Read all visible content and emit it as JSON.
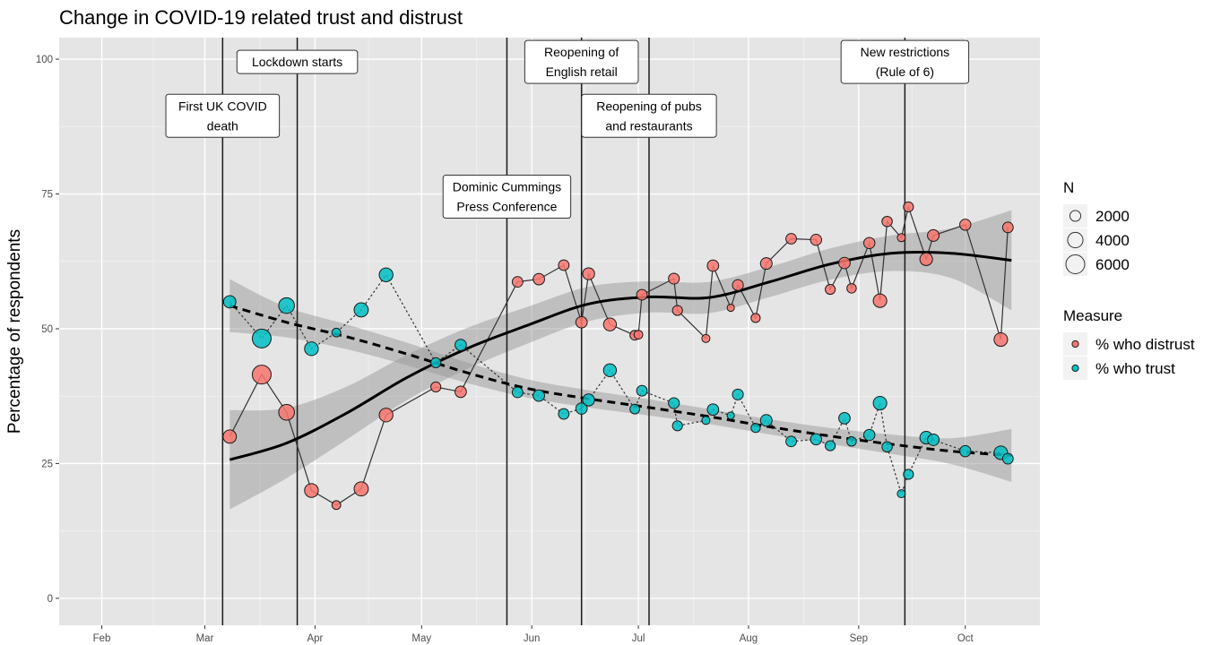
{
  "chart_data": {
    "type": "line",
    "title": "Change in COVID-19 related trust and distrust",
    "xlabel": "",
    "ylabel": "Percentage of respondents",
    "x_type": "date",
    "xlim": [
      "2020-01-20",
      "2020-10-22"
    ],
    "ylim": [
      -5,
      104
    ],
    "x_ticks": [
      {
        "date": "2020-02-01",
        "label": "Feb"
      },
      {
        "date": "2020-03-01",
        "label": "Mar"
      },
      {
        "date": "2020-04-01",
        "label": "Apr"
      },
      {
        "date": "2020-05-01",
        "label": "May"
      },
      {
        "date": "2020-06-01",
        "label": "Jun"
      },
      {
        "date": "2020-07-01",
        "label": "Jul"
      },
      {
        "date": "2020-08-01",
        "label": "Aug"
      },
      {
        "date": "2020-09-01",
        "label": "Sep"
      },
      {
        "date": "2020-10-01",
        "label": "Oct"
      }
    ],
    "y_ticks": [
      0,
      25,
      50,
      75,
      100
    ],
    "grid": true,
    "background": "#e5e5e5",
    "events": [
      {
        "date": "2020-03-06",
        "label": [
          "First UK COVID",
          "death"
        ],
        "label_y": 89.5
      },
      {
        "date": "2020-03-27",
        "label": [
          "Lockdown starts"
        ],
        "label_y": 99.5
      },
      {
        "date": "2020-05-25",
        "label": [
          "Dominic Cummings",
          "Press Conference"
        ],
        "label_y": 74.5
      },
      {
        "date": "2020-06-15",
        "label": [
          "Reopening of",
          "English retail"
        ],
        "label_y": 99.5
      },
      {
        "date": "2020-07-04",
        "label": [
          "Reopening of pubs",
          "and restaurants"
        ],
        "label_y": 89.5
      },
      {
        "date": "2020-09-14",
        "label": [
          "New restrictions",
          "(Rule of 6)"
        ],
        "label_y": 99.5
      }
    ],
    "series": [
      {
        "name": "% who distrust",
        "color": "#f8766d",
        "line_style": "solid",
        "points": [
          {
            "x": "2020-03-08",
            "y": 30,
            "n": 3000
          },
          {
            "x": "2020-03-17",
            "y": 41.5,
            "n": 6000
          },
          {
            "x": "2020-03-24",
            "y": 34.5,
            "n": 4200
          },
          {
            "x": "2020-03-31",
            "y": 20,
            "n": 3200
          },
          {
            "x": "2020-04-07",
            "y": 17.3,
            "n": 1300
          },
          {
            "x": "2020-04-14",
            "y": 20.3,
            "n": 3400
          },
          {
            "x": "2020-04-21",
            "y": 34,
            "n": 3200
          },
          {
            "x": "2020-05-05",
            "y": 39.2,
            "n": 1700
          },
          {
            "x": "2020-05-12",
            "y": 38.3,
            "n": 2200
          },
          {
            "x": "2020-05-28",
            "y": 58.7,
            "n": 1900
          },
          {
            "x": "2020-06-03",
            "y": 59.2,
            "n": 2200
          },
          {
            "x": "2020-06-10",
            "y": 61.8,
            "n": 1900
          },
          {
            "x": "2020-06-15",
            "y": 51.2,
            "n": 2200
          },
          {
            "x": "2020-06-17",
            "y": 60.2,
            "n": 2400
          },
          {
            "x": "2020-06-23",
            "y": 50.8,
            "n": 2800
          },
          {
            "x": "2020-06-30",
            "y": 48.8,
            "n": 1600
          },
          {
            "x": "2020-07-01",
            "y": 48.9,
            "n": 1300
          },
          {
            "x": "2020-07-02",
            "y": 56.3,
            "n": 1900
          },
          {
            "x": "2020-07-11",
            "y": 59.3,
            "n": 2000
          },
          {
            "x": "2020-07-12",
            "y": 53.4,
            "n": 1700
          },
          {
            "x": "2020-07-20",
            "y": 48.2,
            "n": 1100
          },
          {
            "x": "2020-07-22",
            "y": 61.7,
            "n": 2200
          },
          {
            "x": "2020-07-27",
            "y": 53.9,
            "n": 900
          },
          {
            "x": "2020-07-29",
            "y": 58.1,
            "n": 2000
          },
          {
            "x": "2020-08-03",
            "y": 52,
            "n": 1400
          },
          {
            "x": "2020-08-06",
            "y": 62.1,
            "n": 2300
          },
          {
            "x": "2020-08-13",
            "y": 66.7,
            "n": 1900
          },
          {
            "x": "2020-08-20",
            "y": 66.5,
            "n": 2100
          },
          {
            "x": "2020-08-24",
            "y": 57.3,
            "n": 1700
          },
          {
            "x": "2020-08-28",
            "y": 62.2,
            "n": 2200
          },
          {
            "x": "2020-08-30",
            "y": 57.5,
            "n": 1500
          },
          {
            "x": "2020-09-04",
            "y": 65.9,
            "n": 2100
          },
          {
            "x": "2020-09-07",
            "y": 55.2,
            "n": 3100
          },
          {
            "x": "2020-09-09",
            "y": 69.9,
            "n": 1800
          },
          {
            "x": "2020-09-13",
            "y": 66.9,
            "n": 1100
          },
          {
            "x": "2020-09-15",
            "y": 72.6,
            "n": 1700
          },
          {
            "x": "2020-09-20",
            "y": 62.9,
            "n": 2700
          },
          {
            "x": "2020-09-22",
            "y": 67.3,
            "n": 2300
          },
          {
            "x": "2020-10-01",
            "y": 69.3,
            "n": 2100
          },
          {
            "x": "2020-10-11",
            "y": 48,
            "n": 3100
          },
          {
            "x": "2020-10-13",
            "y": 68.8,
            "n": 1900
          }
        ],
        "trend": [
          {
            "x": "2020-03-08",
            "y": 25.7,
            "lo": 16.5,
            "hi": 34.9
          },
          {
            "x": "2020-03-24",
            "y": 28.8,
            "lo": 22.3,
            "hi": 35.3
          },
          {
            "x": "2020-04-10",
            "y": 34.4,
            "lo": 29.5,
            "hi": 39.3
          },
          {
            "x": "2020-04-27",
            "y": 41,
            "lo": 36.8,
            "hi": 45.2
          },
          {
            "x": "2020-05-14",
            "y": 46.4,
            "lo": 42.6,
            "hi": 50.2
          },
          {
            "x": "2020-05-31",
            "y": 50.7,
            "lo": 47.3,
            "hi": 54.1
          },
          {
            "x": "2020-06-17",
            "y": 54.6,
            "lo": 51.4,
            "hi": 57.8
          },
          {
            "x": "2020-07-04",
            "y": 55.9,
            "lo": 53,
            "hi": 58.8
          },
          {
            "x": "2020-07-21",
            "y": 55.8,
            "lo": 52.9,
            "hi": 58.7
          },
          {
            "x": "2020-08-07",
            "y": 58.7,
            "lo": 55.9,
            "hi": 61.5
          },
          {
            "x": "2020-08-24",
            "y": 62,
            "lo": 59.1,
            "hi": 64.9
          },
          {
            "x": "2020-09-10",
            "y": 64,
            "lo": 60.7,
            "hi": 67.3
          },
          {
            "x": "2020-09-27",
            "y": 64,
            "lo": 59.4,
            "hi": 68.6
          },
          {
            "x": "2020-10-14",
            "y": 62.7,
            "lo": 53.4,
            "hi": 72
          }
        ]
      },
      {
        "name": "% who trust",
        "color": "#00bfc4",
        "line_style": "dotted",
        "points": [
          {
            "x": "2020-03-08",
            "y": 55,
            "n": 2600
          },
          {
            "x": "2020-03-17",
            "y": 48.2,
            "n": 6000
          },
          {
            "x": "2020-03-24",
            "y": 54.3,
            "n": 4200
          },
          {
            "x": "2020-03-31",
            "y": 46.3,
            "n": 3200
          },
          {
            "x": "2020-04-07",
            "y": 49.3,
            "n": 1300
          },
          {
            "x": "2020-04-14",
            "y": 53.5,
            "n": 3400
          },
          {
            "x": "2020-04-21",
            "y": 60,
            "n": 3200
          },
          {
            "x": "2020-05-05",
            "y": 43.7,
            "n": 1700
          },
          {
            "x": "2020-05-12",
            "y": 47,
            "n": 2200
          },
          {
            "x": "2020-05-28",
            "y": 38.2,
            "n": 1900
          },
          {
            "x": "2020-06-03",
            "y": 37.6,
            "n": 2200
          },
          {
            "x": "2020-06-10",
            "y": 34.2,
            "n": 1900
          },
          {
            "x": "2020-06-15",
            "y": 35.2,
            "n": 2200
          },
          {
            "x": "2020-06-17",
            "y": 36.8,
            "n": 2400
          },
          {
            "x": "2020-06-23",
            "y": 42.3,
            "n": 2800
          },
          {
            "x": "2020-06-30",
            "y": 35.1,
            "n": 1600
          },
          {
            "x": "2020-07-02",
            "y": 38.5,
            "n": 1900
          },
          {
            "x": "2020-07-11",
            "y": 36.2,
            "n": 2000
          },
          {
            "x": "2020-07-12",
            "y": 32,
            "n": 1700
          },
          {
            "x": "2020-07-20",
            "y": 33,
            "n": 1100
          },
          {
            "x": "2020-07-22",
            "y": 35,
            "n": 2200
          },
          {
            "x": "2020-07-27",
            "y": 33.9,
            "n": 900
          },
          {
            "x": "2020-07-29",
            "y": 37.8,
            "n": 2000
          },
          {
            "x": "2020-08-03",
            "y": 31.6,
            "n": 1400
          },
          {
            "x": "2020-08-06",
            "y": 33,
            "n": 2300
          },
          {
            "x": "2020-08-13",
            "y": 29.1,
            "n": 1900
          },
          {
            "x": "2020-08-20",
            "y": 29.5,
            "n": 2100
          },
          {
            "x": "2020-08-24",
            "y": 28.3,
            "n": 1700
          },
          {
            "x": "2020-08-28",
            "y": 33.4,
            "n": 2200
          },
          {
            "x": "2020-08-30",
            "y": 29.1,
            "n": 1500
          },
          {
            "x": "2020-09-04",
            "y": 30.3,
            "n": 2100
          },
          {
            "x": "2020-09-07",
            "y": 36.2,
            "n": 3100
          },
          {
            "x": "2020-09-09",
            "y": 28.1,
            "n": 1800
          },
          {
            "x": "2020-09-13",
            "y": 19.4,
            "n": 1100
          },
          {
            "x": "2020-09-15",
            "y": 23,
            "n": 1700
          },
          {
            "x": "2020-09-20",
            "y": 29.8,
            "n": 2700
          },
          {
            "x": "2020-09-22",
            "y": 29.4,
            "n": 2300
          },
          {
            "x": "2020-10-01",
            "y": 27.3,
            "n": 2100
          },
          {
            "x": "2020-10-11",
            "y": 27,
            "n": 3100
          },
          {
            "x": "2020-10-13",
            "y": 25.9,
            "n": 1900
          }
        ],
        "trend": [
          {
            "x": "2020-03-08",
            "y": 54.3,
            "lo": 49.4,
            "hi": 59.2
          },
          {
            "x": "2020-03-24",
            "y": 51.2,
            "lo": 48.4,
            "hi": 54
          },
          {
            "x": "2020-04-10",
            "y": 48.5,
            "lo": 46.2,
            "hi": 50.8
          },
          {
            "x": "2020-04-27",
            "y": 45.3,
            "lo": 43.2,
            "hi": 47.4
          },
          {
            "x": "2020-05-14",
            "y": 41.8,
            "lo": 39.9,
            "hi": 43.7
          },
          {
            "x": "2020-05-31",
            "y": 38.9,
            "lo": 37.2,
            "hi": 40.6
          },
          {
            "x": "2020-06-17",
            "y": 37,
            "lo": 35.4,
            "hi": 38.6
          },
          {
            "x": "2020-07-04",
            "y": 35.4,
            "lo": 33.9,
            "hi": 36.9
          },
          {
            "x": "2020-07-21",
            "y": 33.7,
            "lo": 32.3,
            "hi": 35.1
          },
          {
            "x": "2020-08-07",
            "y": 31.8,
            "lo": 30.4,
            "hi": 33.2
          },
          {
            "x": "2020-08-24",
            "y": 30.1,
            "lo": 28.6,
            "hi": 31.6
          },
          {
            "x": "2020-09-10",
            "y": 28.6,
            "lo": 26.8,
            "hi": 30.4
          },
          {
            "x": "2020-09-27",
            "y": 27.3,
            "lo": 24.9,
            "hi": 29.7
          },
          {
            "x": "2020-10-14",
            "y": 26.5,
            "lo": 21.6,
            "hi": 31.4
          }
        ]
      }
    ],
    "legend": {
      "position": "right",
      "size_title": "N",
      "size_items": [
        {
          "label": "2000",
          "n": 2000
        },
        {
          "label": "4000",
          "n": 4000
        },
        {
          "label": "6000",
          "n": 6000
        }
      ],
      "color_title": "Measure",
      "color_items": [
        {
          "label": "% who distrust",
          "color": "#f8766d"
        },
        {
          "label": "% who trust",
          "color": "#00bfc4"
        }
      ]
    }
  }
}
